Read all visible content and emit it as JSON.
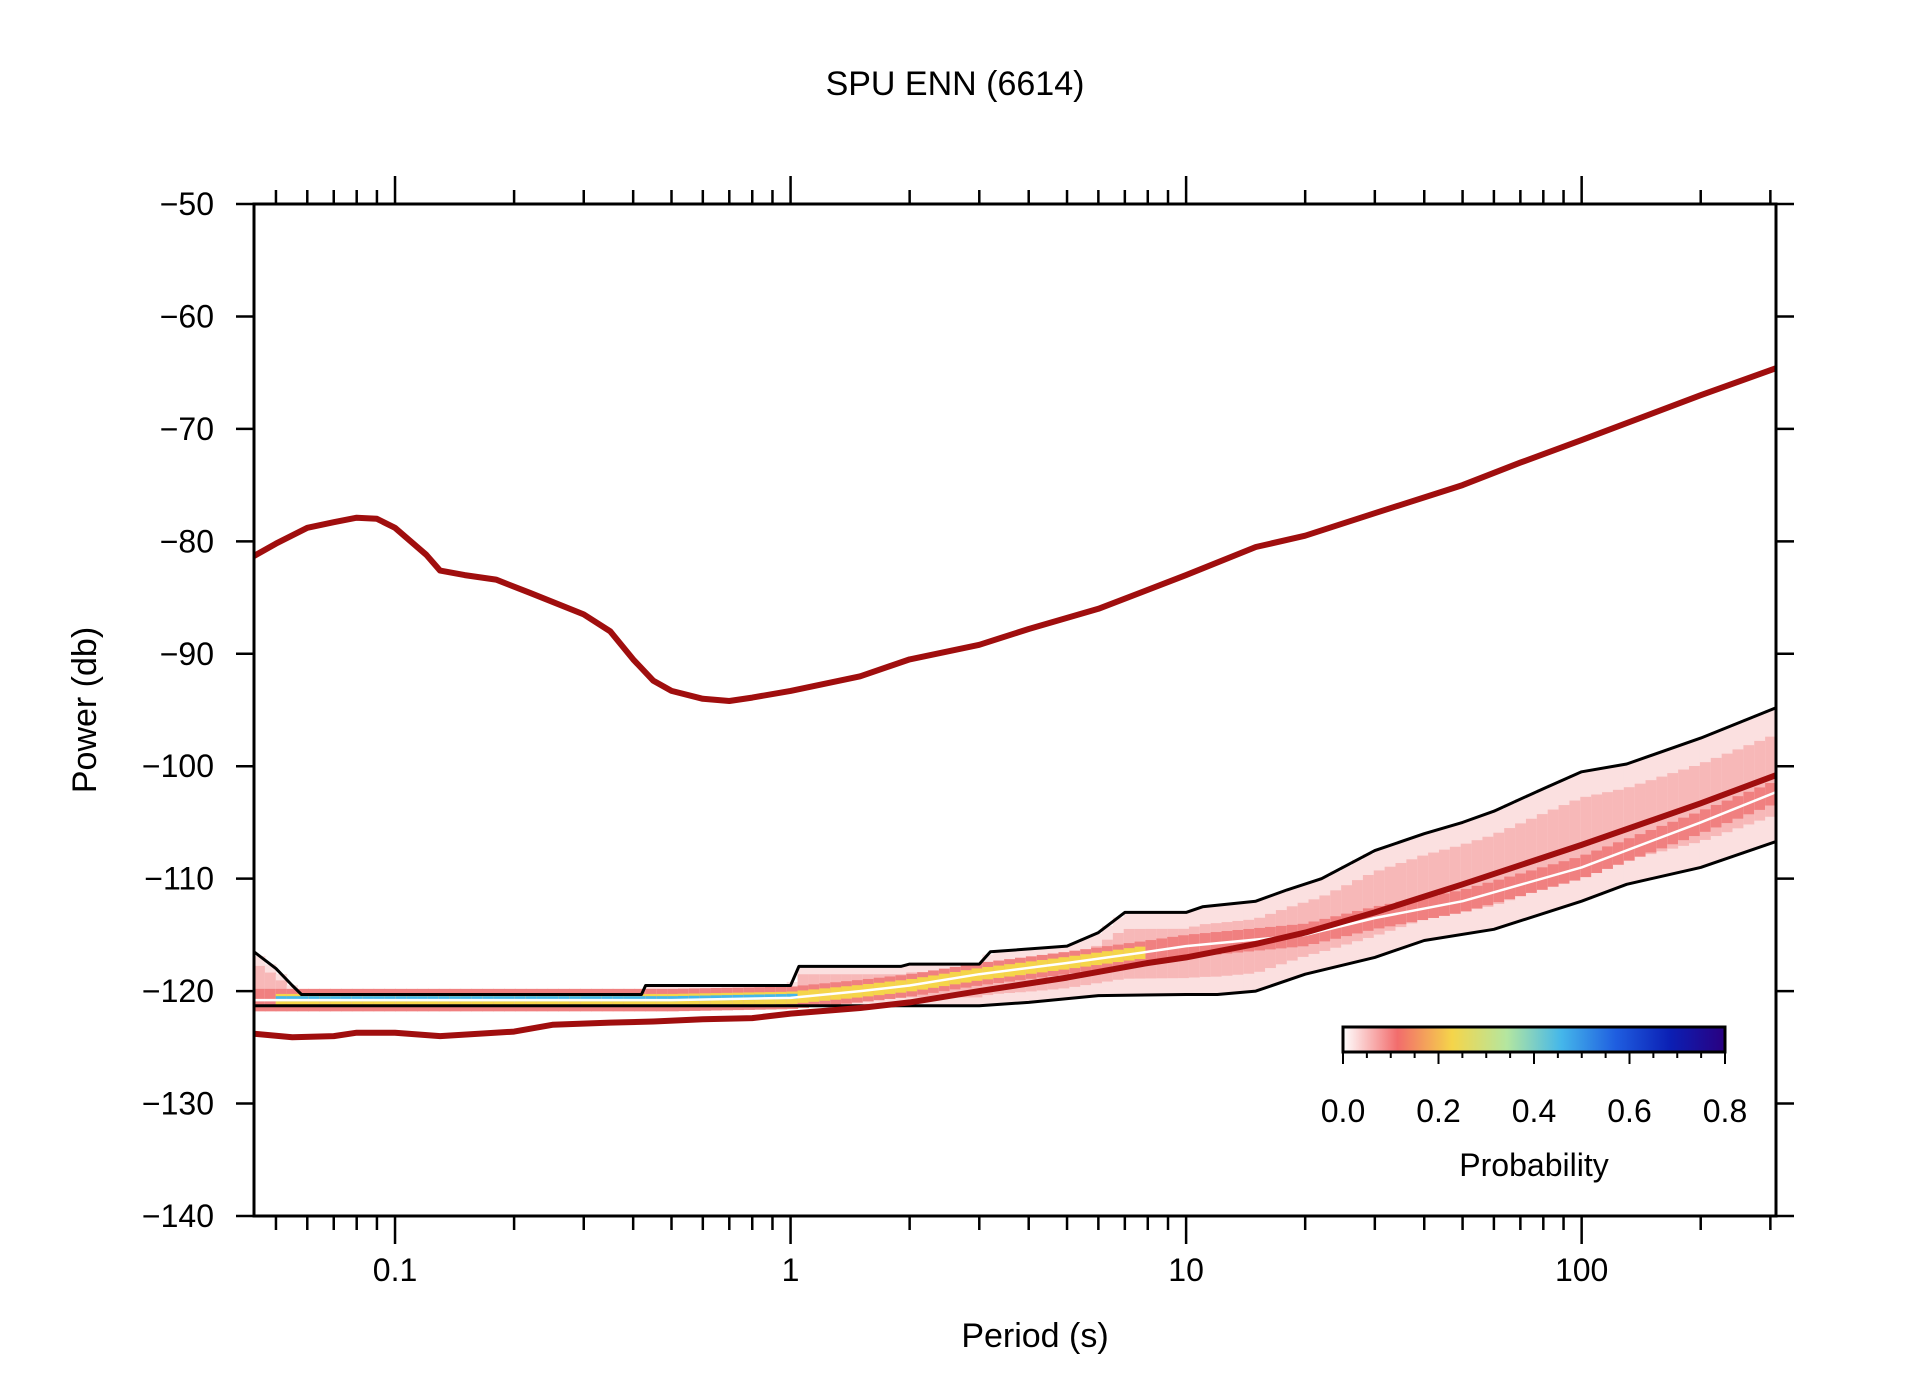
{
  "chart_data": {
    "type": "line",
    "title": "SPU ENN (6614)",
    "xlabel": "Period (s)",
    "ylabel": "Power (db)",
    "x_scale": "log",
    "xlim": [
      0.044,
      310
    ],
    "ylim": [
      -140,
      -50
    ],
    "x_ticks": [
      {
        "value": 0.1,
        "label": "0.1"
      },
      {
        "value": 1,
        "label": "1"
      },
      {
        "value": 10,
        "label": "10"
      },
      {
        "value": 100,
        "label": "100"
      }
    ],
    "y_ticks": [
      {
        "value": -50,
        "label": "−50"
      },
      {
        "value": -60,
        "label": "−60"
      },
      {
        "value": -70,
        "label": "−70"
      },
      {
        "value": -80,
        "label": "−80"
      },
      {
        "value": -90,
        "label": "−90"
      },
      {
        "value": -100,
        "label": "−100"
      },
      {
        "value": -110,
        "label": "−110"
      },
      {
        "value": -120,
        "label": "−120"
      },
      {
        "value": -130,
        "label": "−130"
      },
      {
        "value": -140,
        "label": "−140"
      }
    ],
    "grid": false,
    "series": [
      {
        "role": "upper-reference",
        "color": "#a00e0e",
        "points": [
          [
            0.044,
            -81.3
          ],
          [
            0.05,
            -80.2
          ],
          [
            0.06,
            -78.8
          ],
          [
            0.07,
            -78.3
          ],
          [
            0.08,
            -77.9
          ],
          [
            0.09,
            -78.0
          ],
          [
            0.1,
            -78.8
          ],
          [
            0.12,
            -81.2
          ],
          [
            0.13,
            -82.6
          ],
          [
            0.15,
            -83.0
          ],
          [
            0.18,
            -83.4
          ],
          [
            0.22,
            -84.6
          ],
          [
            0.3,
            -86.5
          ],
          [
            0.35,
            -88.0
          ],
          [
            0.4,
            -90.5
          ],
          [
            0.45,
            -92.4
          ],
          [
            0.5,
            -93.3
          ],
          [
            0.6,
            -94.0
          ],
          [
            0.7,
            -94.2
          ],
          [
            0.8,
            -93.9
          ],
          [
            1,
            -93.3
          ],
          [
            1.5,
            -92.0
          ],
          [
            2,
            -90.5
          ],
          [
            3,
            -89.2
          ],
          [
            4,
            -87.8
          ],
          [
            6,
            -86.0
          ],
          [
            10,
            -83.0
          ],
          [
            15,
            -80.5
          ],
          [
            20,
            -79.5
          ],
          [
            30,
            -77.5
          ],
          [
            50,
            -75.0
          ],
          [
            70,
            -73.0
          ],
          [
            100,
            -71.0
          ],
          [
            200,
            -67.0
          ],
          [
            310,
            -64.6
          ]
        ]
      },
      {
        "role": "lower-reference",
        "color": "#a00e0e",
        "points": [
          [
            0.044,
            -123.8
          ],
          [
            0.055,
            -124.1
          ],
          [
            0.07,
            -124.0
          ],
          [
            0.08,
            -123.7
          ],
          [
            0.1,
            -123.7
          ],
          [
            0.13,
            -124.0
          ],
          [
            0.2,
            -123.6
          ],
          [
            0.25,
            -123.0
          ],
          [
            0.35,
            -122.8
          ],
          [
            0.45,
            -122.7
          ],
          [
            0.6,
            -122.5
          ],
          [
            0.8,
            -122.4
          ],
          [
            1,
            -122.0
          ],
          [
            1.5,
            -121.5
          ],
          [
            2,
            -121.0
          ],
          [
            3,
            -120.0
          ],
          [
            5,
            -118.8
          ],
          [
            8,
            -117.5
          ],
          [
            10,
            -117.0
          ],
          [
            15,
            -115.8
          ],
          [
            20,
            -114.8
          ],
          [
            30,
            -113.0
          ],
          [
            50,
            -110.5
          ],
          [
            100,
            -107.0
          ],
          [
            200,
            -103.3
          ],
          [
            310,
            -100.8
          ]
        ]
      },
      {
        "role": "upper-percentile",
        "color": "#000000",
        "points": [
          [
            0.044,
            -116.5
          ],
          [
            0.05,
            -118.0
          ],
          [
            0.055,
            -119.5
          ],
          [
            0.058,
            -120.3
          ],
          [
            0.1,
            -120.3
          ],
          [
            0.27,
            -120.3
          ],
          [
            0.42,
            -120.3
          ],
          [
            0.43,
            -119.5
          ],
          [
            1,
            -119.5
          ],
          [
            1.05,
            -117.8
          ],
          [
            1.9,
            -117.8
          ],
          [
            2.0,
            -117.6
          ],
          [
            3,
            -117.6
          ],
          [
            3.2,
            -116.5
          ],
          [
            5,
            -116.0
          ],
          [
            6,
            -114.8
          ],
          [
            7,
            -113.0
          ],
          [
            10,
            -113.0
          ],
          [
            11,
            -112.5
          ],
          [
            15,
            -112.0
          ],
          [
            18,
            -111.0
          ],
          [
            22,
            -110.0
          ],
          [
            30,
            -107.5
          ],
          [
            40,
            -106.0
          ],
          [
            50,
            -105.0
          ],
          [
            60,
            -104.0
          ],
          [
            80,
            -102.0
          ],
          [
            100,
            -100.5
          ],
          [
            130,
            -99.8
          ],
          [
            200,
            -97.5
          ],
          [
            310,
            -94.8
          ]
        ]
      },
      {
        "role": "lower-percentile",
        "color": "#000000",
        "points": [
          [
            0.044,
            -121.3
          ],
          [
            0.1,
            -121.3
          ],
          [
            0.5,
            -121.3
          ],
          [
            1,
            -121.3
          ],
          [
            3,
            -121.3
          ],
          [
            4,
            -121.0
          ],
          [
            6,
            -120.4
          ],
          [
            10,
            -120.3
          ],
          [
            12,
            -120.3
          ],
          [
            15,
            -120.0
          ],
          [
            20,
            -118.5
          ],
          [
            30,
            -117.0
          ],
          [
            40,
            -115.5
          ],
          [
            60,
            -114.5
          ],
          [
            100,
            -112.0
          ],
          [
            130,
            -110.5
          ],
          [
            200,
            -109.0
          ],
          [
            310,
            -106.7
          ]
        ]
      },
      {
        "role": "mode",
        "color": "#ffffff",
        "points": [
          [
            0.044,
            -120.8
          ],
          [
            0.5,
            -120.8
          ],
          [
            1,
            -120.6
          ],
          [
            1.5,
            -120.0
          ],
          [
            2,
            -119.5
          ],
          [
            3,
            -118.5
          ],
          [
            5,
            -117.5
          ],
          [
            8,
            -116.5
          ],
          [
            10,
            -116.0
          ],
          [
            20,
            -115.0
          ],
          [
            30,
            -113.5
          ],
          [
            50,
            -112.0
          ],
          [
            100,
            -109.0
          ],
          [
            200,
            -105.0
          ],
          [
            310,
            -102.3
          ]
        ]
      }
    ],
    "colorbar": {
      "label": "Probability",
      "range": [
        0.0,
        0.8
      ],
      "ticks": [
        "0.0",
        "0.2",
        "0.4",
        "0.6",
        "0.8"
      ],
      "colors": [
        "#ffffff",
        "#f26c6c",
        "#f5d54a",
        "#b4e6a0",
        "#45b7ea",
        "#1f5ee0",
        "#0b1fb4",
        "#2a0080"
      ]
    }
  }
}
